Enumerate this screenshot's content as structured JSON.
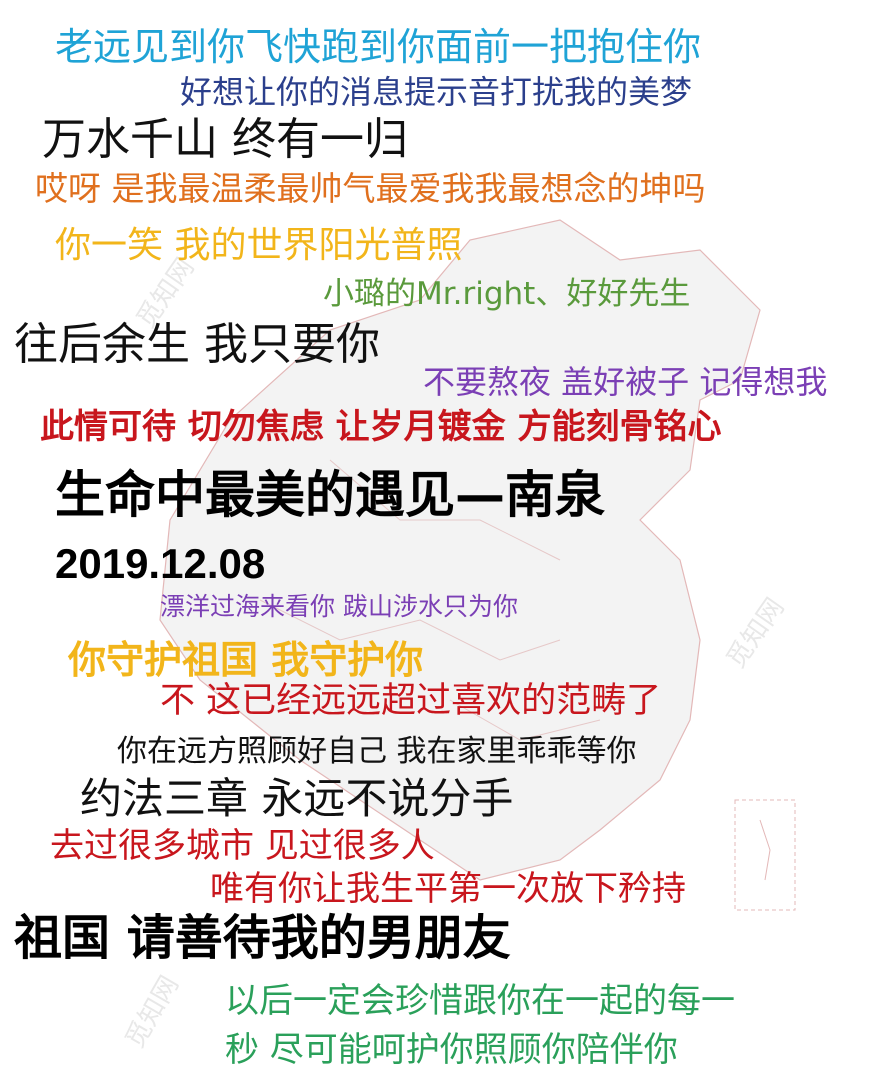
{
  "lines": [
    {
      "text": "老远见到你飞快跑到你面前一把抱住你",
      "color": "#1fa3d6"
    },
    {
      "text": "好想让你的消息提示音打扰我的美梦",
      "color": "#2b3f8c"
    },
    {
      "text": "万水千山 终有一归",
      "color": "#111111"
    },
    {
      "text": "哎呀 是我最温柔最帅气最爱我我最想念的坤吗",
      "color": "#e0701e"
    },
    {
      "text": "你一笑 我的世界阳光普照",
      "color": "#f2b51a"
    },
    {
      "text": "小璐的Mr.right、好好先生",
      "color": "#5a9a3c"
    },
    {
      "text": "往后余生 我只要你",
      "color": "#111111"
    },
    {
      "text": "不要熬夜 盖好被子 记得想我",
      "color": "#7b3fb5"
    },
    {
      "text": "此情可待 切勿焦虑 让岁月镀金 方能刻骨铭心",
      "color": "#c8161d"
    },
    {
      "text": "生命中最美的遇见—南泉",
      "color": "#000000"
    },
    {
      "text": "2019.12.08",
      "color": "#000000"
    },
    {
      "text": "漂洋过海来看你 跋山涉水只为你",
      "color": "#7b3fb5"
    },
    {
      "text": "你守护祖国 我守护你",
      "color": "#f2b51a"
    },
    {
      "text": "不 这已经远远超过喜欢的范畴了",
      "color": "#c8161d"
    },
    {
      "text": "你在远方照顾好自己 我在家里乖乖等你",
      "color": "#111111"
    },
    {
      "text": "约法三章 永远不说分手",
      "color": "#111111"
    },
    {
      "text": "去过很多城市 见过很多人",
      "color": "#c8161d"
    },
    {
      "text": "唯有你让我生平第一次放下矜持",
      "color": "#c8161d"
    },
    {
      "text": "祖国 请善待我的男朋友",
      "color": "#000000"
    },
    {
      "text": "以后一定会珍惜跟你在一起的每一",
      "color": "#2aa05a"
    },
    {
      "text": "秒 尽可能呵护你照顾你陪伴你",
      "color": "#2aa05a"
    }
  ],
  "watermark": {
    "text": "觅知网"
  }
}
